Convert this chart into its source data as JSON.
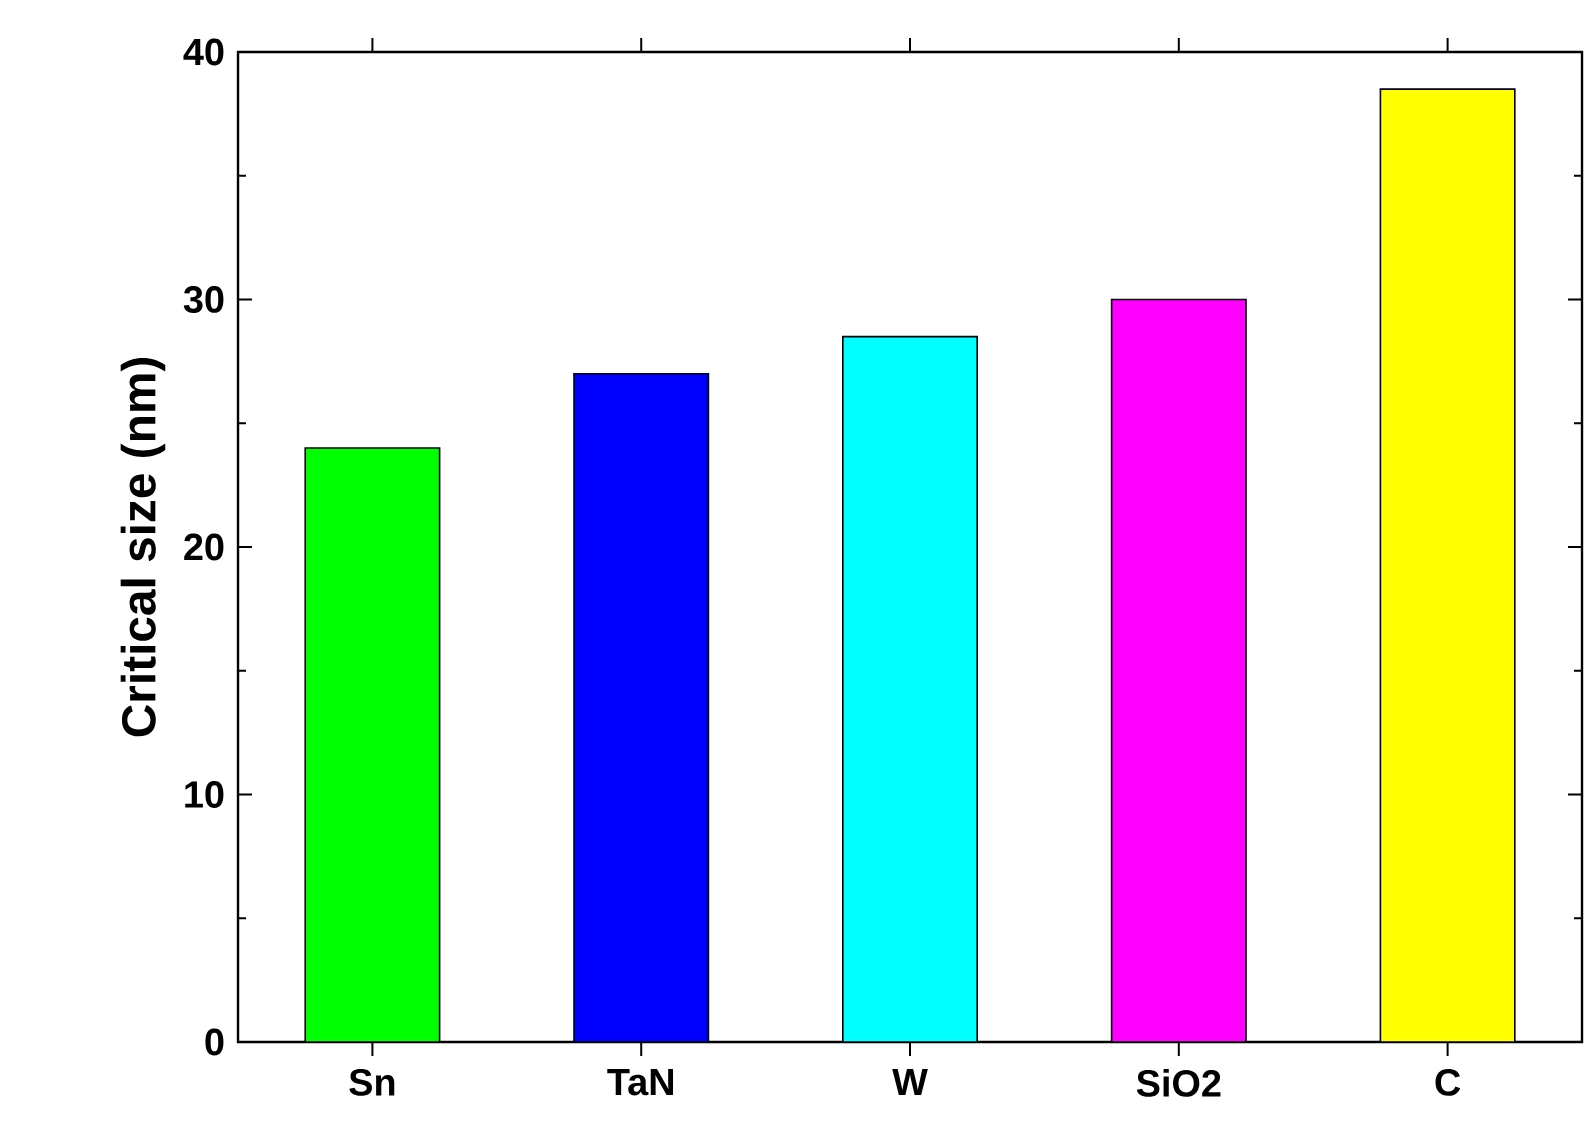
{
  "chart_data": {
    "type": "bar",
    "ylabel": "Critical size (nm)",
    "categories": [
      "Sn",
      "TaN",
      "W",
      "SiO2",
      "C"
    ],
    "values": [
      24,
      27,
      28.5,
      30,
      38.5
    ],
    "colors": [
      "#00ff00",
      "#0000ff",
      "#00ffff",
      "#ff00ff",
      "#ffff00"
    ],
    "ylim": [
      0,
      40
    ],
    "yticks": [
      0,
      10,
      20,
      30,
      40
    ]
  }
}
